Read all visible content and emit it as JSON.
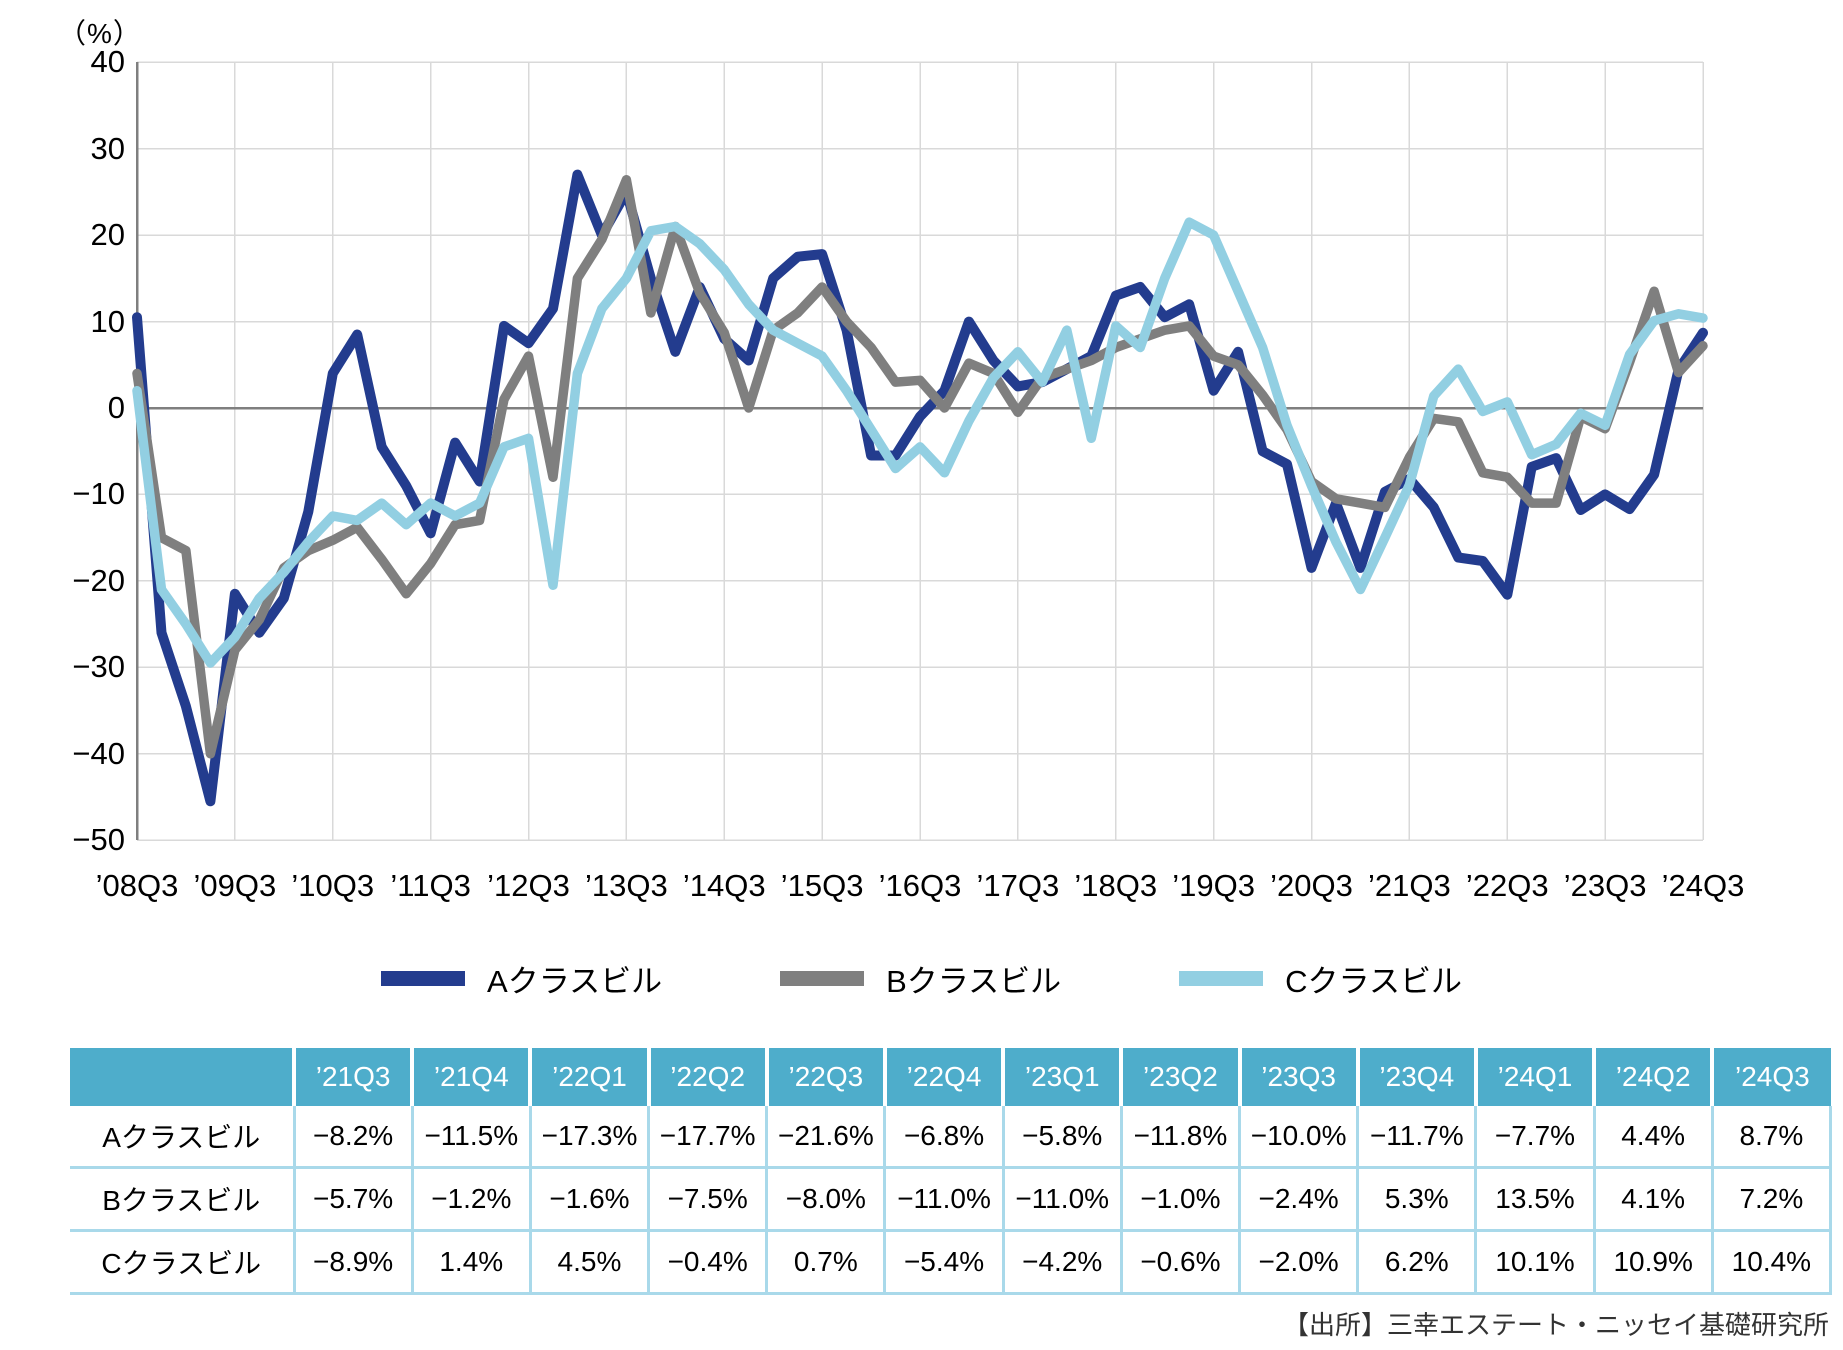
{
  "chart": {
    "percent_label": "（%）",
    "y_ticks": [
      {
        "label": "40",
        "value": 40
      },
      {
        "label": "30",
        "value": 30
      },
      {
        "label": "20",
        "value": 20
      },
      {
        "label": "10",
        "value": 10
      },
      {
        "label": "0",
        "value": 0
      },
      {
        "label": "−10",
        "value": -10
      },
      {
        "label": "−20",
        "value": -20
      },
      {
        "label": "−30",
        "value": -30
      },
      {
        "label": "−40",
        "value": -40
      },
      {
        "label": "−50",
        "value": -50
      }
    ],
    "x_tick_labels": [
      "’08Q3",
      "’09Q3",
      "’10Q3",
      "’11Q3",
      "’12Q3",
      "’13Q3",
      "’14Q3",
      "’15Q3",
      "’16Q3",
      "’17Q3",
      "’18Q3",
      "’19Q3",
      "’20Q3",
      "’21Q3",
      "’22Q3",
      "’23Q3",
      "’24Q3"
    ],
    "grid_color": "#D9D9D9",
    "axis_color": "#7F7F7F"
  },
  "chart_data": {
    "type": "line",
    "unit": "%",
    "ylim": [
      -50,
      40
    ],
    "grid": true,
    "zero_line": true,
    "legend_position": "bottom",
    "x_tick_step": 4,
    "categories": [
      "’08Q3",
      "’08Q4",
      "’09Q1",
      "’09Q2",
      "’09Q3",
      "’09Q4",
      "’10Q1",
      "’10Q2",
      "’10Q3",
      "’10Q4",
      "’11Q1",
      "’11Q2",
      "’11Q3",
      "’11Q4",
      "’12Q1",
      "’12Q2",
      "’12Q3",
      "’12Q4",
      "’13Q1",
      "’13Q2",
      "’13Q3",
      "’13Q4",
      "’14Q1",
      "’14Q2",
      "’14Q3",
      "’14Q4",
      "’15Q1",
      "’15Q2",
      "’15Q3",
      "’15Q4",
      "’16Q1",
      "’16Q2",
      "’16Q3",
      "’16Q4",
      "’17Q1",
      "’17Q2",
      "’17Q3",
      "’17Q4",
      "’18Q1",
      "’18Q2",
      "’18Q3",
      "’18Q4",
      "’19Q1",
      "’19Q2",
      "’19Q3",
      "’19Q4",
      "’20Q1",
      "’20Q2",
      "’20Q3",
      "’20Q4",
      "’21Q1",
      "’21Q2",
      "’21Q3",
      "’21Q4",
      "’22Q1",
      "’22Q2",
      "’22Q3",
      "’22Q4",
      "’23Q1",
      "’23Q2",
      "’23Q3",
      "’23Q4",
      "’24Q1",
      "’24Q2",
      "’24Q3"
    ],
    "series": [
      {
        "name": "Aクラスビル",
        "color": "#233C8E",
        "values": [
          10.5,
          -26,
          -34.5,
          -45.5,
          -21.5,
          -26,
          -22,
          -12,
          4,
          8.5,
          -4.5,
          -9,
          -14.5,
          -4,
          -8.5,
          9.5,
          7.5,
          11.5,
          27,
          20,
          25,
          15,
          6.5,
          14,
          8,
          5.5,
          15,
          17.5,
          17.8,
          9,
          -5.5,
          -5.5,
          -1,
          2,
          10,
          5.5,
          2.5,
          3,
          4.5,
          6,
          13,
          14,
          10.5,
          12,
          2,
          6.5,
          -5,
          -6.5,
          -18.5,
          -11,
          -18.5,
          -9.7,
          -8.2,
          -11.5,
          -17.3,
          -17.7,
          -21.6,
          -6.8,
          -5.8,
          -11.8,
          -10,
          -11.7,
          -7.7,
          4.4,
          8.7
        ]
      },
      {
        "name": "Bクラスビル",
        "color": "#7F7F7F",
        "values": [
          4,
          -15,
          -16.5,
          -40,
          -28,
          -24.5,
          -18.5,
          -16.5,
          -15.3,
          -13.8,
          -17.5,
          -21.5,
          -18,
          -13.5,
          -13,
          1,
          6,
          -8,
          15,
          19.5,
          26.4,
          11,
          21,
          13.3,
          8.7,
          0,
          9,
          11,
          14,
          10,
          7,
          3,
          3.2,
          0,
          5.2,
          4,
          -0.5,
          3.5,
          4.5,
          5.5,
          7,
          8,
          9,
          9.5,
          6,
          5,
          1.5,
          -2.5,
          -8.5,
          -10.5,
          -11,
          -11.5,
          -5.7,
          -1.2,
          -1.6,
          -7.5,
          -8,
          -11,
          -11,
          -1,
          -2.4,
          5.3,
          13.5,
          4.1,
          7.2
        ]
      },
      {
        "name": "Cクラスビル",
        "color": "#92CFE2",
        "values": [
          2,
          -21,
          -25,
          -29.5,
          -26.5,
          -22,
          -19,
          -15.5,
          -12.5,
          -13,
          -11,
          -13.5,
          -11,
          -12.5,
          -11,
          -4.5,
          -3.5,
          -20.5,
          4,
          11.5,
          15,
          20.5,
          21,
          19,
          16,
          12,
          9,
          7.5,
          6,
          2,
          -2.5,
          -7,
          -4.5,
          -7.5,
          -1.5,
          3.5,
          6.5,
          3,
          9,
          -3.5,
          9.5,
          7,
          15,
          21.5,
          20,
          13.5,
          7,
          -2,
          -9,
          -15.5,
          -21,
          -15,
          -8.9,
          1.4,
          4.5,
          -0.4,
          0.7,
          -5.4,
          -4.2,
          -0.6,
          -2,
          6.2,
          10.1,
          10.9,
          10.4
        ]
      }
    ]
  },
  "legend": {
    "items": [
      {
        "label": "Aクラスビル",
        "color": "#233C8E"
      },
      {
        "label": "Bクラスビル",
        "color": "#7F7F7F"
      },
      {
        "label": "Cクラスビル",
        "color": "#92CFE2"
      }
    ]
  },
  "table": {
    "header": [
      "",
      "’21Q3",
      "’21Q4",
      "’22Q1",
      "’22Q2",
      "’22Q3",
      "’22Q4",
      "’23Q1",
      "’23Q2",
      "’23Q3",
      "’23Q4",
      "’24Q1",
      "’24Q2",
      "’24Q3"
    ],
    "rows": [
      {
        "label": "Aクラスビル",
        "values": [
          "−8.2%",
          "−11.5%",
          "−17.3%",
          "−17.7%",
          "−21.6%",
          "−6.8%",
          "−5.8%",
          "−11.8%",
          "−10.0%",
          "−11.7%",
          "−7.7%",
          "4.4%",
          "8.7%"
        ]
      },
      {
        "label": "Bクラスビル",
        "values": [
          "−5.7%",
          "−1.2%",
          "−1.6%",
          "−7.5%",
          "−8.0%",
          "−11.0%",
          "−11.0%",
          "−1.0%",
          "−2.4%",
          "5.3%",
          "13.5%",
          "4.1%",
          "7.2%"
        ]
      },
      {
        "label": "Cクラスビル",
        "values": [
          "−8.9%",
          "1.4%",
          "4.5%",
          "−0.4%",
          "0.7%",
          "−5.4%",
          "−4.2%",
          "−0.6%",
          "−2.0%",
          "6.2%",
          "10.1%",
          "10.9%",
          "10.4%"
        ]
      }
    ],
    "header_bg": "#4EADCB",
    "border_color": "#A9D9EA"
  },
  "source": "【出所】三幸エステート・ニッセイ基礎研究所"
}
